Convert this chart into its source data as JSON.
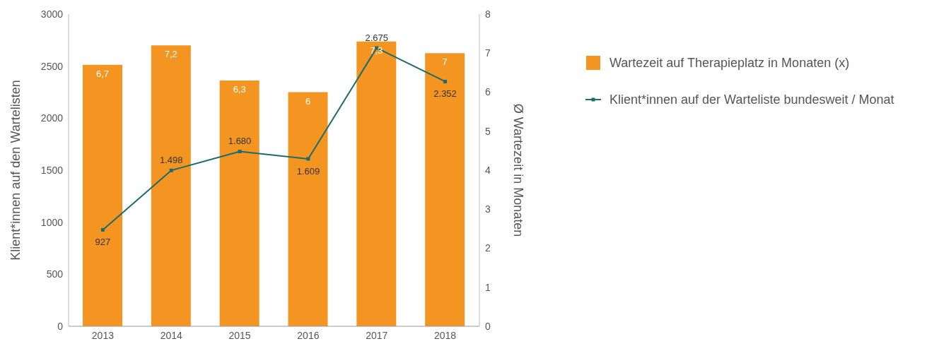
{
  "chart_data": {
    "type": "bar",
    "categories": [
      "2013",
      "2014",
      "2015",
      "2016",
      "2017",
      "2018"
    ],
    "ylabel": "Klient*innen auf den Wartelisten",
    "y2label": "Ø Wartezeit in Monaten",
    "ylim": [
      0,
      3000
    ],
    "yticks": [
      0,
      500,
      1000,
      1500,
      2000,
      2500,
      3000
    ],
    "y2lim": [
      0,
      8
    ],
    "y2ticks": [
      0,
      1,
      2,
      3,
      4,
      5,
      6,
      7,
      8
    ],
    "legend": "right",
    "grid": false,
    "marker": "square",
    "series": [
      {
        "name": "Wartezeit auf Therapieplatz in Monaten (x)",
        "axis": "y2",
        "color": "#f39520",
        "values": [
          6.7,
          7.2,
          6.3,
          6,
          7.3,
          7
        ],
        "value_labels": [
          "6,7",
          "7,2",
          "6,3",
          "6",
          "7,3",
          "7"
        ]
      },
      {
        "name": "Klient*innen auf der Warteliste bundesweit / Monat",
        "type": "line",
        "color": "#1e6b6e",
        "values": [
          927,
          1498,
          1680,
          1609,
          2675,
          2352
        ],
        "value_labels": [
          "927",
          "1.498",
          "1.680",
          "1.609",
          "2.675",
          "2.352"
        ]
      }
    ]
  }
}
